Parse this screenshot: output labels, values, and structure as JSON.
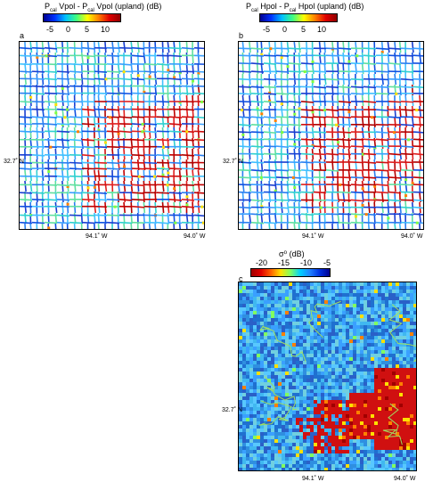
{
  "panels": [
    {
      "id": "a",
      "letter": "a",
      "cb_title_main": "P",
      "cb_sub1": "cal",
      "cb_mid": " Vpol - P",
      "cb_sub2": "cal",
      "cb_tail": " Vpol (upland) (dB)",
      "cb_ticks": [
        "-5",
        "0",
        "5",
        "10"
      ],
      "lat_label": "32.7˚ N",
      "lon_labels": [
        "94.1˚ W",
        "94.0˚ W"
      ]
    },
    {
      "id": "b",
      "letter": "b",
      "cb_title_main": "P",
      "cb_sub1": "cal",
      "cb_mid": " Hpol - P",
      "cb_sub2": "cal",
      "cb_tail": " Hpol (upland) (dB)",
      "cb_ticks": [
        "-5",
        "0",
        "5",
        "10"
      ],
      "lat_label": "32.7˚ N",
      "lon_labels": [
        "94.1˚ W",
        "94.0˚ W"
      ]
    },
    {
      "id": "c",
      "letter": "c",
      "cb_title": "σ⁰ (dB)",
      "cb_ticks": [
        "-20",
        "-15",
        "-10",
        "-5"
      ],
      "lat_label": "32.7˚ N",
      "lon_labels": [
        "94.1˚ W",
        "94.0˚ W"
      ]
    }
  ],
  "colors": {
    "jet_low": "#0000c8",
    "jet_high": "#c80000",
    "flood_red": "#d01010",
    "background_blue": "#2f8fe0"
  }
}
